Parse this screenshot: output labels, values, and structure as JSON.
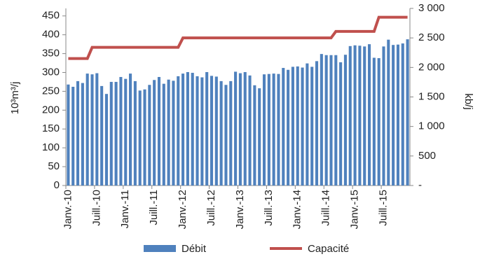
{
  "chart_data": {
    "type": "bar",
    "y_label": "10³m³/j",
    "y2_label": "kb/j",
    "categories": [
      "Janv.-10",
      null,
      null,
      null,
      null,
      null,
      "Juill.-10",
      null,
      null,
      null,
      null,
      null,
      "Janv.-11",
      null,
      null,
      null,
      null,
      null,
      "Juill.-11",
      null,
      null,
      null,
      null,
      null,
      "Janv.-12",
      null,
      null,
      null,
      null,
      null,
      "Juill.-12",
      null,
      null,
      null,
      null,
      null,
      "Janv.-13",
      null,
      null,
      null,
      null,
      null,
      "Juill.-13",
      null,
      null,
      null,
      null,
      null,
      "Janv.-14",
      null,
      null,
      null,
      null,
      null,
      "Juill.-14",
      null,
      null,
      null,
      null,
      null,
      "Janv.-15",
      null,
      null,
      null,
      null,
      null,
      "Juill.-15",
      null,
      null,
      null,
      null,
      null
    ],
    "series": [
      {
        "name": "Débit",
        "type": "bar",
        "color": "#4f81bd",
        "values": [
          268,
          262,
          277,
          272,
          297,
          295,
          298,
          264,
          243,
          275,
          275,
          288,
          283,
          297,
          277,
          252,
          255,
          267,
          280,
          288,
          270,
          281,
          278,
          290,
          297,
          301,
          299,
          290,
          287,
          301,
          291,
          289,
          277,
          267,
          277,
          302,
          298,
          301,
          292,
          266,
          258,
          295,
          296,
          297,
          296,
          312,
          307,
          315,
          316,
          313,
          324,
          315,
          330,
          349,
          346,
          346,
          346,
          327,
          347,
          370,
          372,
          371,
          369,
          375,
          339,
          338,
          369,
          387,
          373,
          374,
          377,
          388
        ]
      },
      {
        "name": "Capacité",
        "type": "line",
        "axis": "y2",
        "color": "#c0504d",
        "values": [
          2150,
          2150,
          2150,
          2150,
          2150,
          2340,
          2340,
          2340,
          2340,
          2340,
          2340,
          2340,
          2340,
          2340,
          2340,
          2340,
          2340,
          2340,
          2340,
          2340,
          2340,
          2340,
          2340,
          2340,
          2500,
          2500,
          2500,
          2500,
          2500,
          2500,
          2500,
          2500,
          2500,
          2500,
          2500,
          2500,
          2500,
          2500,
          2500,
          2500,
          2500,
          2500,
          2500,
          2500,
          2500,
          2500,
          2500,
          2500,
          2500,
          2500,
          2500,
          2500,
          2500,
          2500,
          2500,
          2500,
          2610,
          2610,
          2610,
          2610,
          2610,
          2610,
          2610,
          2610,
          2610,
          2850,
          2850,
          2850,
          2850,
          2850,
          2850,
          2850
        ]
      }
    ],
    "ylim": [
      0,
      470
    ],
    "yticks": [
      0,
      50,
      100,
      150,
      200,
      250,
      300,
      350,
      400,
      450
    ],
    "y2lim": [
      0,
      3000
    ],
    "y2ticks": [
      {
        "value": 0,
        "label": "-"
      },
      500,
      {
        "value": 1000,
        "label": "1 000"
      },
      {
        "value": 1500,
        "label": "1 500"
      },
      {
        "value": 2000,
        "label": "2 000"
      },
      {
        "value": 2500,
        "label": "2 500"
      },
      {
        "value": 3000,
        "label": "3 000"
      }
    ],
    "grid": false,
    "legend": "bottom"
  }
}
